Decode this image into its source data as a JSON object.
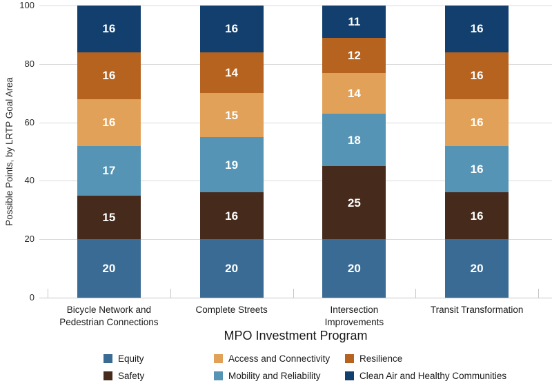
{
  "figure": {
    "x_axis_title": "MPO Investment Program",
    "y_axis_title": "Possible Points, by LRTP Goal Area"
  },
  "chart_data": {
    "type": "bar",
    "stacked": true,
    "stack_order": "bottom-to-top",
    "categories": [
      "Bicycle Network and Pedestrian Connections",
      "Complete Streets",
      "Intersection Improvements",
      "Transit Transformation"
    ],
    "series": [
      {
        "name": "Equity",
        "color": "#3A6B94",
        "values": [
          20,
          20,
          20,
          20
        ]
      },
      {
        "name": "Safety",
        "color": "#462A1B",
        "values": [
          15,
          16,
          25,
          16
        ]
      },
      {
        "name": "Mobility and Reliability",
        "color": "#5594B4",
        "values": [
          17,
          19,
          18,
          16
        ]
      },
      {
        "name": "Access and Connectivity",
        "color": "#E2A158",
        "values": [
          16,
          15,
          14,
          16
        ]
      },
      {
        "name": "Resilience",
        "color": "#B6631F",
        "values": [
          16,
          14,
          12,
          16
        ]
      },
      {
        "name": "Clean Air and Healthy Communities",
        "color": "#123F6E",
        "values": [
          16,
          16,
          11,
          16
        ]
      }
    ],
    "xlabel": "MPO Investment Program",
    "ylabel": "Possible Points, by LRTP Goal Area",
    "ylim": [
      0,
      100
    ],
    "yticks": [
      0,
      20,
      40,
      60,
      80,
      100
    ],
    "grid": true,
    "bar_value_labels": true,
    "legend_position": "bottom",
    "legend_order": [
      "Equity",
      "Access and Connectivity",
      "Resilience",
      "Safety",
      "Mobility and Reliability",
      "Clean Air and Healthy Communities"
    ]
  },
  "colors": {
    "background": "#FFFFFF",
    "grid": "#D9D9D9",
    "axis": "#C6C6C6",
    "text": "#2B2B2B",
    "bar_label": "#FFFFFF"
  }
}
